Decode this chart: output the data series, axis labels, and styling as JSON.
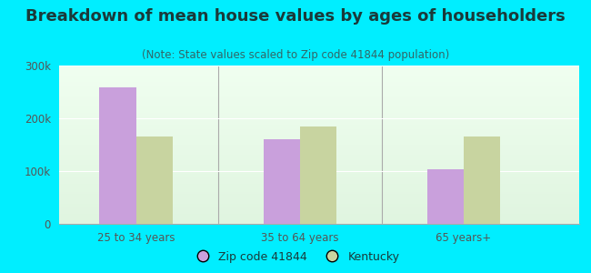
{
  "title": "Breakdown of mean house values by ages of householders",
  "subtitle": "(Note: State values scaled to Zip code 41844 population)",
  "categories": [
    "25 to 34 years",
    "35 to 64 years",
    "65 years+"
  ],
  "zip_values": [
    258000,
    160000,
    103000
  ],
  "ky_values": [
    165000,
    185000,
    165000
  ],
  "zip_color": "#c9a0dc",
  "ky_color": "#c8d4a0",
  "background_outer": "#00eeff",
  "background_inner_top": "#f0fff0",
  "background_inner_bottom": "#e0f5e0",
  "title_color": "#1a3a3a",
  "subtitle_color": "#336666",
  "tick_color": "#555555",
  "ylim": [
    0,
    300000
  ],
  "yticks": [
    0,
    100000,
    200000,
    300000
  ],
  "ytick_labels": [
    "0",
    "100k",
    "200k",
    "300k"
  ],
  "legend_zip_label": "Zip code 41844",
  "legend_ky_label": "Kentucky",
  "bar_width": 0.38,
  "group_positions": [
    1.0,
    2.7,
    4.4
  ],
  "title_fontsize": 13,
  "subtitle_fontsize": 8.5,
  "tick_fontsize": 8.5,
  "legend_fontsize": 9
}
